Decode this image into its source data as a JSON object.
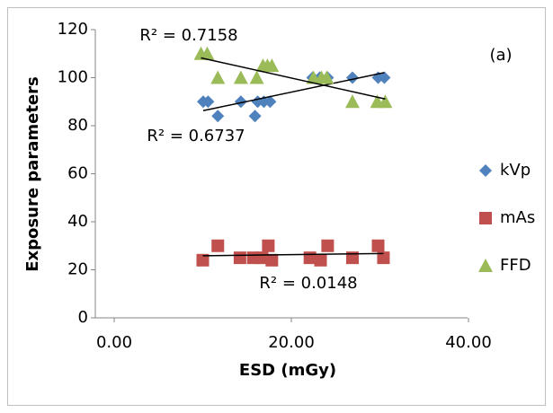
{
  "chart_data": {
    "type": "scatter",
    "xlabel": "ESD (mGy)",
    "ylabel": "Exposure parameters",
    "annotations": [
      "R² = 0.7158",
      "R² = 0.6737",
      "R² = 0.0148",
      "(a)"
    ],
    "xlim": [
      0,
      40
    ],
    "xticks": [
      {
        "value": 0,
        "label": "0.00"
      },
      {
        "value": 20,
        "label": "20.00"
      },
      {
        "value": 40,
        "label": "40.00"
      }
    ],
    "ylim": [
      0,
      120
    ],
    "yticks": [
      0,
      20,
      40,
      60,
      80,
      100,
      120
    ],
    "trendline": true,
    "trendline_color": "#000000",
    "series": [
      {
        "name": "kVp",
        "color": "#4f81bd",
        "marker": "diamond",
        "x": [
          10.05,
          10.6,
          11.7,
          14.3,
          15.9,
          16.2,
          16.9,
          17.6,
          22.4,
          23.2,
          24.1,
          26.9,
          29.8,
          30.5
        ],
        "values": [
          90,
          90,
          84,
          90,
          84,
          90,
          90,
          90,
          100,
          100,
          100,
          100,
          100,
          100
        ]
      },
      {
        "name": "mAs",
        "color": "#c0504d",
        "marker": "square",
        "x": [
          10.0,
          11.7,
          14.2,
          15.7,
          16.7,
          17.4,
          17.8,
          22.1,
          23.3,
          24.1,
          26.9,
          29.8,
          30.4
        ],
        "values": [
          24,
          30,
          25,
          25,
          25,
          30,
          24,
          25,
          24,
          30,
          25,
          30,
          25
        ]
      },
      {
        "name": "FFD",
        "color": "#9bbb59",
        "marker": "triangle",
        "x": [
          9.8,
          10.5,
          11.7,
          14.3,
          16.1,
          16.8,
          17.3,
          17.8,
          22.5,
          23.4,
          24.0,
          26.9,
          29.7,
          30.6
        ],
        "values": [
          110,
          110,
          100,
          100,
          100,
          105,
          105,
          105,
          100,
          100,
          100,
          90,
          90,
          90
        ]
      }
    ]
  }
}
